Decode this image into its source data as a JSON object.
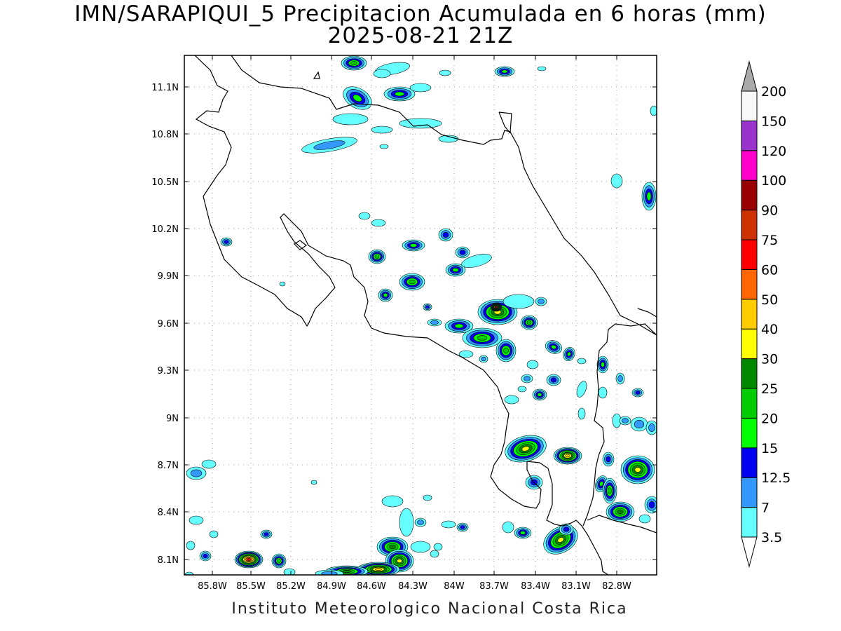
{
  "title": "IMN/SARAPIQUI_5 Precipitacion Acumulada en 6 horas (mm)",
  "subtitle": "2025-08-21 21Z",
  "footer": "Instituto Meteorologico Nacional Costa Rica",
  "lat_labels": [
    "11.1N",
    "10.8N",
    "10.5N",
    "10.2N",
    "9.9N",
    "9.6N",
    "9.3N",
    "9N",
    "8.7N",
    "8.4N",
    "8.1N"
  ],
  "lon_labels": [
    "85.8W",
    "85.5W",
    "85.2W",
    "84.9W",
    "84.6W",
    "84.3W",
    "84W",
    "83.7W",
    "83.4W",
    "83.1W",
    "82.8W"
  ],
  "colorbar": {
    "labels": [
      "3.5",
      "7",
      "12.5",
      "15",
      "20",
      "25",
      "30",
      "40",
      "50",
      "60",
      "75",
      "90",
      "100",
      "120",
      "150",
      "200"
    ],
    "colors": [
      "#66ffff",
      "#3399ff",
      "#0000ee",
      "#00ff00",
      "#00cc00",
      "#008800",
      "#ffff00",
      "#ffcc00",
      "#ff6600",
      "#ff0000",
      "#cc3300",
      "#990000",
      "#ff00cc",
      "#9933cc",
      "#f8f8f8",
      "#aaaaaa"
    ]
  },
  "map_extent": {
    "lon_west": "86.0W",
    "lon_east": "82.6W",
    "lat_south": "8.0N",
    "lat_north": "11.3N"
  }
}
